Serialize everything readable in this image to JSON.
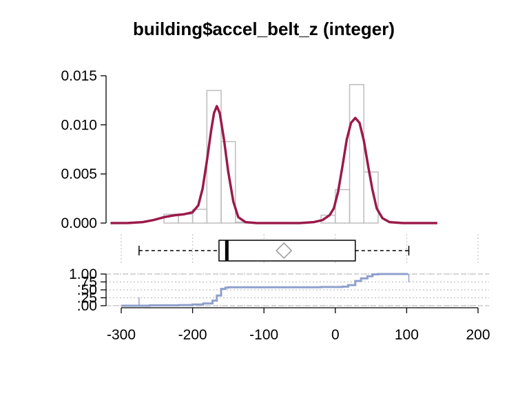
{
  "chart_data": {
    "title": "building$accel_belt_z (integer)",
    "type": "histogram-density-boxplot-ecdf",
    "x_ticks": [
      -300,
      -200,
      -100,
      0,
      100,
      200
    ],
    "xlim": [
      -315,
      205
    ],
    "histogram": {
      "type": "bar",
      "ylim": [
        0,
        0.015
      ],
      "y_ticks": [
        "0.000",
        "0.005",
        "0.010",
        "0.015"
      ],
      "bin_edges": [
        -240,
        -220,
        -200,
        -180,
        -160,
        -140,
        -120,
        -100,
        -80,
        -60,
        -40,
        -20,
        0,
        20,
        40,
        60
      ],
      "values": [
        0.0009,
        0.0009,
        0.0014,
        0.0135,
        0.0083,
        0.0001,
        0.0,
        0.0,
        0.0,
        0.0,
        0.0,
        0.0008,
        0.0034,
        0.0141,
        0.0052
      ]
    },
    "density": {
      "type": "line",
      "color": "#9b1a4a",
      "points": [
        [
          -315,
          0
        ],
        [
          -290,
          1e-05
        ],
        [
          -270,
          0.0001
        ],
        [
          -255,
          0.0003
        ],
        [
          -240,
          0.0006
        ],
        [
          -225,
          0.0008
        ],
        [
          -212,
          0.0009
        ],
        [
          -200,
          0.0011
        ],
        [
          -192,
          0.0018
        ],
        [
          -186,
          0.0035
        ],
        [
          -180,
          0.0063
        ],
        [
          -174,
          0.0094
        ],
        [
          -170,
          0.0112
        ],
        [
          -166,
          0.0119
        ],
        [
          -162,
          0.0112
        ],
        [
          -156,
          0.0085
        ],
        [
          -150,
          0.0052
        ],
        [
          -143,
          0.0022
        ],
        [
          -136,
          0.0006
        ],
        [
          -126,
          0.0001
        ],
        [
          -110,
          0
        ],
        [
          -50,
          0
        ],
        [
          -30,
          0.0001
        ],
        [
          -18,
          0.0003
        ],
        [
          -8,
          0.0008
        ],
        [
          -2,
          0.0015
        ],
        [
          4,
          0.0032
        ],
        [
          10,
          0.0058
        ],
        [
          16,
          0.0085
        ],
        [
          22,
          0.0102
        ],
        [
          28,
          0.0107
        ],
        [
          34,
          0.0102
        ],
        [
          40,
          0.0084
        ],
        [
          46,
          0.0058
        ],
        [
          52,
          0.0034
        ],
        [
          58,
          0.0015
        ],
        [
          66,
          0.0005
        ],
        [
          76,
          0.0001
        ],
        [
          95,
          0
        ],
        [
          143,
          0
        ]
      ]
    },
    "boxplot": {
      "whisker_low": -275,
      "q1": -163,
      "median": -152,
      "mean": -72,
      "q3": 28,
      "whisker_high": 103
    },
    "ecdf": {
      "type": "line",
      "color": "#8ea0cc",
      "y_ticks": [
        "1.00",
        ".75",
        ".50",
        ".25",
        ".00"
      ],
      "y_values": [
        1.0,
        0.75,
        0.5,
        0.25,
        0.0
      ],
      "points": [
        [
          -300,
          0
        ],
        [
          -280,
          0
        ],
        [
          -260,
          0.01
        ],
        [
          -220,
          0.02
        ],
        [
          -200,
          0.04
        ],
        [
          -185,
          0.07
        ],
        [
          -172,
          0.16
        ],
        [
          -166,
          0.32
        ],
        [
          -160,
          0.53
        ],
        [
          -154,
          0.57
        ],
        [
          -150,
          0.58
        ],
        [
          -100,
          0.58
        ],
        [
          -50,
          0.58
        ],
        [
          -20,
          0.59
        ],
        [
          10,
          0.6
        ],
        [
          18,
          0.65
        ],
        [
          28,
          0.78
        ],
        [
          36,
          0.86
        ],
        [
          45,
          0.93
        ],
        [
          52,
          0.99
        ],
        [
          60,
          1.0
        ],
        [
          102,
          1.0
        ]
      ]
    }
  }
}
